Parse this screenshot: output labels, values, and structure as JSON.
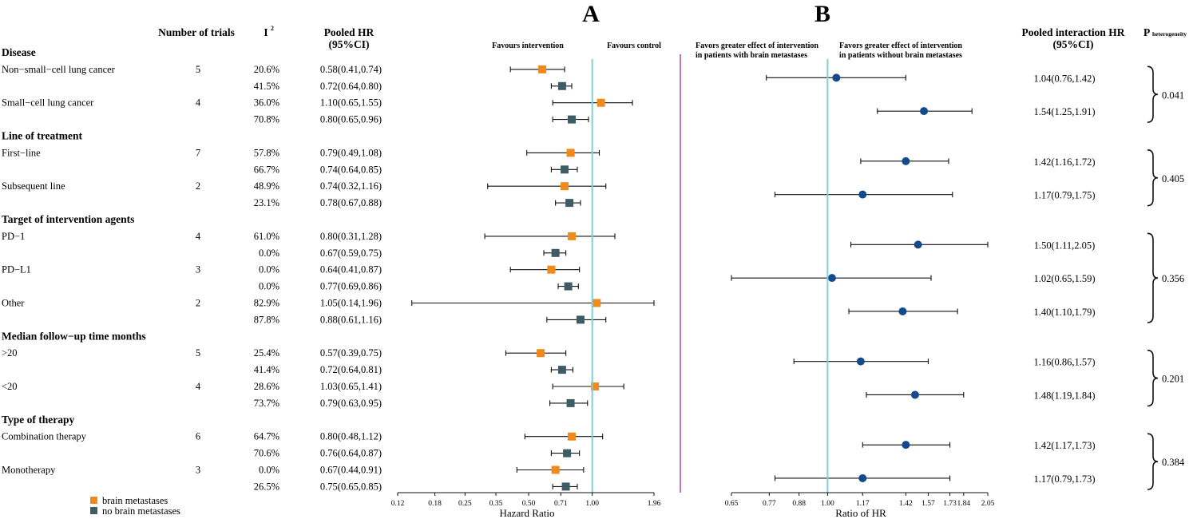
{
  "panel_labels": {
    "a": "A",
    "b": "B"
  },
  "headers": {
    "trials": "Number of trials",
    "i2": "I",
    "i2_sup": "2",
    "pooled_hr_line1": "Pooled HR",
    "pooled_hr_line2": "(95%CI)",
    "interaction_line1": "Pooled interaction HR",
    "interaction_line2": "(95%CI)",
    "p": "P",
    "p_sub": "heterogeneity"
  },
  "colors": {
    "brain": "#f08a1c",
    "nobrain": "#3d5c64",
    "ref": "#7dcfd8",
    "divider": "#a0309a",
    "point_b": "#134a8e"
  },
  "legend": {
    "brain": "brain metastases",
    "nobrain": "no brain metastases"
  },
  "chart_data": [
    {
      "type": "forest",
      "panel": "A",
      "xlabel": "Hazard Ratio",
      "scale": "log",
      "xlim": [
        0.12,
        1.96
      ],
      "xticks": [
        0.12,
        0.18,
        0.25,
        0.35,
        0.5,
        0.71,
        1.0,
        1.96
      ],
      "xtick_labels": [
        "0.12",
        "0.18",
        "0.25",
        "0.35",
        "0.50",
        "0.71",
        "1.00",
        "1.96"
      ],
      "reference": 1.0,
      "favours_left": "Favours intervention",
      "favours_right": "Favours control",
      "groups": [
        {
          "title": "Disease",
          "subgroups": [
            {
              "name": "Non−small−cell lung cancer",
              "trials": "5",
              "rows": [
                {
                  "series": "brain",
                  "i2": "20.6%",
                  "ci_text": "0.58(0.41,0.74)",
                  "hr": 0.58,
                  "lo": 0.41,
                  "hi": 0.74
                },
                {
                  "series": "nobrain",
                  "i2": "41.5%",
                  "ci_text": "0.72(0.64,0.80)",
                  "hr": 0.72,
                  "lo": 0.64,
                  "hi": 0.8
                }
              ]
            },
            {
              "name": "Small−cell lung cancer",
              "trials": "4",
              "rows": [
                {
                  "series": "brain",
                  "i2": "36.0%",
                  "ci_text": "1.10(0.65,1.55)",
                  "hr": 1.1,
                  "lo": 0.65,
                  "hi": 1.55
                },
                {
                  "series": "nobrain",
                  "i2": "70.8%",
                  "ci_text": "0.80(0.65,0.96)",
                  "hr": 0.8,
                  "lo": 0.65,
                  "hi": 0.96
                }
              ]
            }
          ]
        },
        {
          "title": "Line of treatment",
          "subgroups": [
            {
              "name": "First−line",
              "trials": "7",
              "rows": [
                {
                  "series": "brain",
                  "i2": "57.8%",
                  "ci_text": "0.79(0.49,1.08)",
                  "hr": 0.79,
                  "lo": 0.49,
                  "hi": 1.08
                },
                {
                  "series": "nobrain",
                  "i2": "66.7%",
                  "ci_text": "0.74(0.64,0.85)",
                  "hr": 0.74,
                  "lo": 0.64,
                  "hi": 0.85
                }
              ]
            },
            {
              "name": "Subsequent line",
              "trials": "2",
              "rows": [
                {
                  "series": "brain",
                  "i2": "48.9%",
                  "ci_text": "0.74(0.32,1.16)",
                  "hr": 0.74,
                  "lo": 0.32,
                  "hi": 1.16
                },
                {
                  "series": "nobrain",
                  "i2": "23.1%",
                  "ci_text": "0.78(0.67,0.88)",
                  "hr": 0.78,
                  "lo": 0.67,
                  "hi": 0.88
                }
              ]
            }
          ]
        },
        {
          "title": "Target of intervention agents",
          "subgroups": [
            {
              "name": "PD−1",
              "trials": "4",
              "rows": [
                {
                  "series": "brain",
                  "i2": "61.0%",
                  "ci_text": "0.80(0.31,1.28)",
                  "hr": 0.8,
                  "lo": 0.31,
                  "hi": 1.28
                },
                {
                  "series": "nobrain",
                  "i2": "0.0%",
                  "ci_text": "0.67(0.59,0.75)",
                  "hr": 0.67,
                  "lo": 0.59,
                  "hi": 0.75
                }
              ]
            },
            {
              "name": "PD−L1",
              "trials": "3",
              "rows": [
                {
                  "series": "brain",
                  "i2": "0.0%",
                  "ci_text": "0.64(0.41,0.87)",
                  "hr": 0.64,
                  "lo": 0.41,
                  "hi": 0.87
                },
                {
                  "series": "nobrain",
                  "i2": "0.0%",
                  "ci_text": "0.77(0.69,0.86)",
                  "hr": 0.77,
                  "lo": 0.69,
                  "hi": 0.86
                }
              ]
            },
            {
              "name": "Other",
              "trials": "2",
              "rows": [
                {
                  "series": "brain",
                  "i2": "82.9%",
                  "ci_text": "1.05(0.14,1.96)",
                  "hr": 1.05,
                  "lo": 0.14,
                  "hi": 1.96
                },
                {
                  "series": "nobrain",
                  "i2": "87.8%",
                  "ci_text": "0.88(0.61,1.16)",
                  "hr": 0.88,
                  "lo": 0.61,
                  "hi": 1.16
                }
              ]
            }
          ]
        },
        {
          "title": "Median follow−up time months",
          "subgroups": [
            {
              "name": ">20",
              "trials": "5",
              "rows": [
                {
                  "series": "brain",
                  "i2": "25.4%",
                  "ci_text": "0.57(0.39,0.75)",
                  "hr": 0.57,
                  "lo": 0.39,
                  "hi": 0.75
                },
                {
                  "series": "nobrain",
                  "i2": "41.4%",
                  "ci_text": "0.72(0.64,0.81)",
                  "hr": 0.72,
                  "lo": 0.64,
                  "hi": 0.81
                }
              ]
            },
            {
              "name": "<20",
              "trials": "4",
              "rows": [
                {
                  "series": "brain",
                  "i2": "28.6%",
                  "ci_text": "1.03(0.65,1.41)",
                  "hr": 1.03,
                  "lo": 0.65,
                  "hi": 1.41
                },
                {
                  "series": "nobrain",
                  "i2": "73.7%",
                  "ci_text": "0.79(0.63,0.95)",
                  "hr": 0.79,
                  "lo": 0.63,
                  "hi": 0.95
                }
              ]
            }
          ]
        },
        {
          "title": "Type of therapy",
          "subgroups": [
            {
              "name": "Combination therapy",
              "trials": "6",
              "rows": [
                {
                  "series": "brain",
                  "i2": "64.7%",
                  "ci_text": "0.80(0.48,1.12)",
                  "hr": 0.8,
                  "lo": 0.48,
                  "hi": 1.12
                },
                {
                  "series": "nobrain",
                  "i2": "70.6%",
                  "ci_text": "0.76(0.64,0.87)",
                  "hr": 0.76,
                  "lo": 0.64,
                  "hi": 0.87
                }
              ]
            },
            {
              "name": "Monotherapy",
              "trials": "3",
              "rows": [
                {
                  "series": "brain",
                  "i2": "0.0%",
                  "ci_text": "0.67(0.44,0.91)",
                  "hr": 0.67,
                  "lo": 0.44,
                  "hi": 0.91
                },
                {
                  "series": "nobrain",
                  "i2": "26.5%",
                  "ci_text": "0.75(0.65,0.85)",
                  "hr": 0.75,
                  "lo": 0.65,
                  "hi": 0.85
                }
              ]
            }
          ]
        }
      ]
    },
    {
      "type": "forest",
      "panel": "B",
      "xlabel": "Ratio of HR",
      "scale": "log",
      "xlim": [
        0.65,
        2.05
      ],
      "xticks": [
        0.65,
        0.77,
        0.88,
        1.0,
        1.17,
        1.42,
        1.57,
        1.73,
        1.84,
        2.05
      ],
      "xtick_labels": [
        "0.65",
        "0.77",
        "0.88",
        "1.00",
        "1.17",
        "1.42",
        "1.57",
        "1.73",
        "1.84",
        "2.05"
      ],
      "reference": 1.0,
      "favours_left_line1": "Favors greater effect of intervention",
      "favours_left_line2": "in patients with brain metastases",
      "favours_right_line1": "Favors greater effect of intervention",
      "favours_right_line2": "in patients without brain metastases",
      "rows": [
        {
          "ci_text": "1.04(0.76,1.42)",
          "hr": 1.04,
          "lo": 0.76,
          "hi": 1.42
        },
        {
          "ci_text": "1.54(1.25,1.91)",
          "hr": 1.54,
          "lo": 1.25,
          "hi": 1.91
        },
        {
          "ci_text": "1.42(1.16,1.72)",
          "hr": 1.42,
          "lo": 1.16,
          "hi": 1.72
        },
        {
          "ci_text": "1.17(0.79,1.75)",
          "hr": 1.17,
          "lo": 0.79,
          "hi": 1.75
        },
        {
          "ci_text": "1.50(1.11,2.05)",
          "hr": 1.5,
          "lo": 1.11,
          "hi": 2.05
        },
        {
          "ci_text": "1.02(0.65,1.59)",
          "hr": 1.02,
          "lo": 0.65,
          "hi": 1.59
        },
        {
          "ci_text": "1.40(1.10,1.79)",
          "hr": 1.4,
          "lo": 1.1,
          "hi": 1.79
        },
        {
          "ci_text": "1.16(0.86,1.57)",
          "hr": 1.16,
          "lo": 0.86,
          "hi": 1.57
        },
        {
          "ci_text": "1.48(1.19,1.84)",
          "hr": 1.48,
          "lo": 1.19,
          "hi": 1.84
        },
        {
          "ci_text": "1.42(1.17,1.73)",
          "hr": 1.42,
          "lo": 1.17,
          "hi": 1.73
        },
        {
          "ci_text": "1.17(0.79,1.73)",
          "hr": 1.17,
          "lo": 0.79,
          "hi": 1.73
        }
      ],
      "p_heterogeneity": [
        "0.041",
        "0.405",
        "0.356",
        "0.201",
        "0.384"
      ]
    }
  ]
}
